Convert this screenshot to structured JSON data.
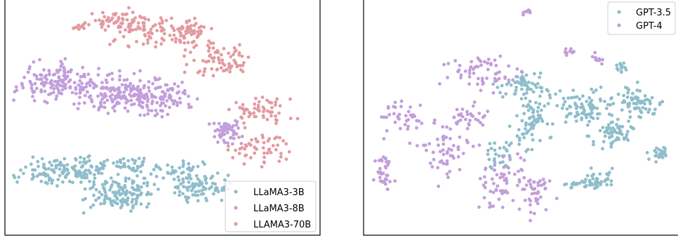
{
  "chart_data": [
    {
      "type": "scatter",
      "title": "",
      "xlabel": "",
      "ylabel": "",
      "grid": false,
      "ticks": "none",
      "legend": "lower-right",
      "series": [
        {
          "name": "LLaMA3-3B",
          "color": "#8fbdcb",
          "clusters": [
            {
              "cx": 1.6,
              "cy": 2.6,
              "rx": 1.3,
              "ry": 0.55,
              "n": 110
            },
            {
              "cx": 3.6,
              "cy": 1.7,
              "rx": 1.0,
              "ry": 0.75,
              "n": 140
            },
            {
              "cx": 5.2,
              "cy": 2.7,
              "rx": 1.0,
              "ry": 0.3,
              "n": 40
            },
            {
              "cx": 6.2,
              "cy": 1.9,
              "rx": 0.8,
              "ry": 0.65,
              "n": 90
            },
            {
              "cx": 3.0,
              "cy": 2.9,
              "rx": 1.6,
              "ry": 0.35,
              "n": 50
            }
          ]
        },
        {
          "name": "LLaMA3-8B",
          "color": "#c29edb",
          "clusters": [
            {
              "cx": 1.5,
              "cy": 6.6,
              "rx": 1.1,
              "ry": 0.8,
              "n": 140
            },
            {
              "cx": 3.6,
              "cy": 6.1,
              "rx": 1.3,
              "ry": 0.85,
              "n": 160
            },
            {
              "cx": 5.0,
              "cy": 5.8,
              "rx": 0.9,
              "ry": 0.7,
              "n": 80
            },
            {
              "cx": 7.1,
              "cy": 4.4,
              "rx": 0.45,
              "ry": 0.45,
              "n": 55
            }
          ]
        },
        {
          "name": "LLAMA3-70B",
          "color": "#e39aa1",
          "clusters": [
            {
              "cx": 3.5,
              "cy": 9.4,
              "rx": 0.9,
              "ry": 0.4,
              "n": 45
            },
            {
              "cx": 4.3,
              "cy": 8.9,
              "rx": 1.2,
              "ry": 0.6,
              "n": 70
            },
            {
              "cx": 5.8,
              "cy": 8.8,
              "rx": 0.8,
              "ry": 0.6,
              "n": 60
            },
            {
              "cx": 6.8,
              "cy": 7.6,
              "rx": 0.9,
              "ry": 0.6,
              "n": 70
            },
            {
              "cx": 8.3,
              "cy": 5.3,
              "rx": 0.9,
              "ry": 0.6,
              "n": 55
            },
            {
              "cx": 8.2,
              "cy": 3.7,
              "rx": 0.8,
              "ry": 0.7,
              "n": 55
            },
            {
              "cx": 2.4,
              "cy": 9.1,
              "rx": 0.3,
              "ry": 0.15,
              "n": 12
            }
          ]
        }
      ],
      "xlim": [
        0,
        10
      ],
      "ylim": [
        0,
        10
      ]
    },
    {
      "type": "scatter",
      "title": "",
      "xlabel": "",
      "ylabel": "",
      "grid": false,
      "ticks": "none",
      "legend": "top-right",
      "series": [
        {
          "name": "GPT-3.5",
          "color": "#8fbdcb",
          "clusters": [
            {
              "cx": 5.0,
              "cy": 6.5,
              "rx": 0.7,
              "ry": 0.5,
              "n": 50
            },
            {
              "cx": 5.3,
              "cy": 5.0,
              "rx": 0.6,
              "ry": 1.2,
              "n": 80
            },
            {
              "cx": 6.9,
              "cy": 5.5,
              "rx": 0.8,
              "ry": 0.8,
              "n": 80
            },
            {
              "cx": 7.9,
              "cy": 4.2,
              "rx": 0.6,
              "ry": 0.6,
              "n": 60
            },
            {
              "cx": 8.7,
              "cy": 5.7,
              "rx": 0.7,
              "ry": 0.7,
              "n": 70
            },
            {
              "cx": 9.5,
              "cy": 3.4,
              "rx": 0.4,
              "ry": 0.3,
              "n": 25
            },
            {
              "cx": 7.5,
              "cy": 2.3,
              "rx": 0.5,
              "ry": 0.4,
              "n": 30
            },
            {
              "cx": 4.2,
              "cy": 3.3,
              "rx": 0.5,
              "ry": 0.6,
              "n": 30
            },
            {
              "cx": 8.2,
              "cy": 7.2,
              "rx": 0.2,
              "ry": 0.3,
              "n": 12
            },
            {
              "cx": 7.0,
              "cy": 2.0,
              "rx": 0.7,
              "ry": 0.2,
              "n": 25
            }
          ]
        },
        {
          "name": "GPT-4",
          "color": "#c29edb",
          "clusters": [
            {
              "cx": 3.8,
              "cy": 7.0,
              "rx": 1.3,
              "ry": 0.8,
              "n": 60
            },
            {
              "cx": 1.2,
              "cy": 5.0,
              "rx": 0.8,
              "ry": 0.8,
              "n": 40
            },
            {
              "cx": 0.5,
              "cy": 2.7,
              "rx": 0.3,
              "ry": 1.0,
              "n": 35
            },
            {
              "cx": 2.6,
              "cy": 3.6,
              "rx": 1.0,
              "ry": 1.3,
              "n": 60
            },
            {
              "cx": 4.4,
              "cy": 2.2,
              "rx": 0.8,
              "ry": 1.2,
              "n": 60
            },
            {
              "cx": 5.5,
              "cy": 1.6,
              "rx": 0.5,
              "ry": 0.9,
              "n": 40
            },
            {
              "cx": 3.3,
              "cy": 5.1,
              "rx": 0.6,
              "ry": 0.5,
              "n": 30
            },
            {
              "cx": 5.2,
              "cy": 9.7,
              "rx": 0.15,
              "ry": 0.12,
              "n": 8
            },
            {
              "cx": 6.5,
              "cy": 7.9,
              "rx": 0.15,
              "ry": 0.2,
              "n": 10
            },
            {
              "cx": 7.5,
              "cy": 7.6,
              "rx": 0.2,
              "ry": 0.3,
              "n": 10
            }
          ]
        }
      ],
      "xlim": [
        0,
        10
      ],
      "ylim": [
        0,
        10
      ]
    }
  ]
}
